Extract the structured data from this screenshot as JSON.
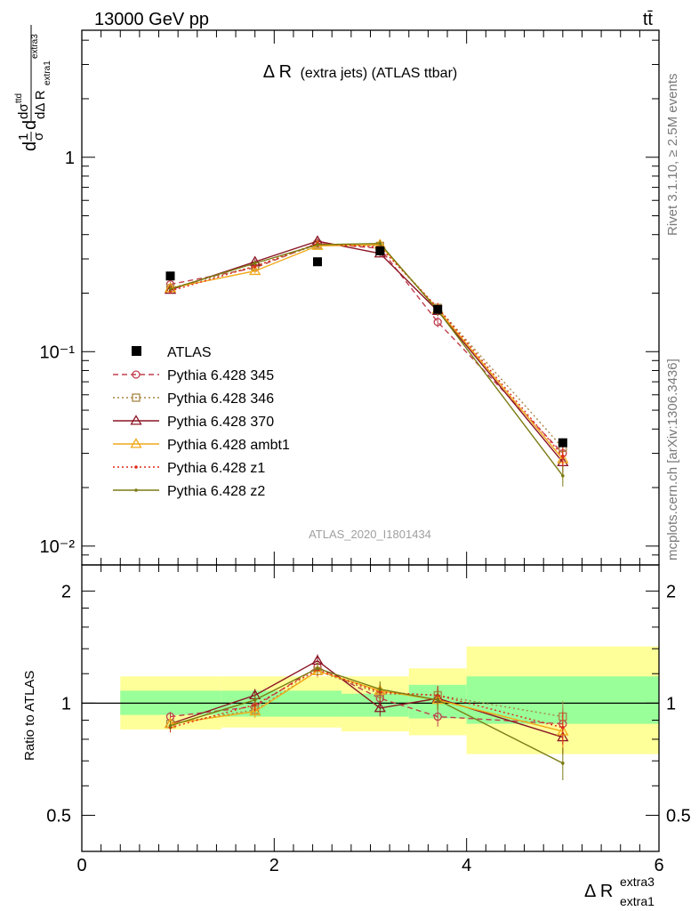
{
  "header": {
    "energy_label": "13000 GeV pp",
    "process_label": "tt̄"
  },
  "side_labels": {
    "rivet": "Rivet 3.1.10, ≥ 2.5M events",
    "source": "mcplots.cern.ch [arXiv:1306.3436]"
  },
  "chart_data": [
    {
      "type": "line",
      "panel": "main",
      "title_main": "Δ R",
      "title_sub": "(extra jets) (ATLAS ttbar)",
      "analysis_label": "ATLAS_2020_I1801434",
      "ylabel": "dσ/dΔ R normalized (1/σ)",
      "yscale": "log",
      "ylim": [
        0.008,
        4.5
      ],
      "xlim": [
        0,
        6
      ],
      "ytick_labels": [
        "10⁻²",
        "10⁻¹",
        "1"
      ],
      "grid": false,
      "legend_position": "left-middle",
      "data": {
        "name": "ATLAS",
        "x": [
          0.92,
          2.45,
          3.1,
          3.7,
          5.0
        ],
        "y": [
          0.245,
          0.29,
          0.33,
          0.165,
          0.034
        ],
        "band_bins": [
          [
            0.4,
            1.45
          ],
          [
            1.45,
            2.7
          ],
          [
            2.7,
            3.4
          ],
          [
            3.4,
            4.0
          ],
          [
            4.0,
            6.0
          ]
        ]
      },
      "series": [
        {
          "name": "Pythia 6.428 345",
          "color": "#c0404f",
          "marker": "circle",
          "dash": "6,4",
          "x": [
            0.92,
            1.8,
            2.45,
            3.1,
            3.7,
            5.0
          ],
          "y": [
            0.222,
            0.27,
            0.36,
            0.34,
            0.142,
            0.03
          ]
        },
        {
          "name": "Pythia 6.428 346",
          "color": "#a88545",
          "marker": "square",
          "dash": "2,3",
          "x": [
            0.92,
            1.8,
            2.45,
            3.1,
            3.7,
            5.0
          ],
          "y": [
            0.212,
            0.275,
            0.355,
            0.35,
            0.168,
            0.032
          ]
        },
        {
          "name": "Pythia 6.428 370",
          "color": "#8b1525",
          "marker": "triangle",
          "dash": "",
          "x": [
            0.92,
            1.8,
            2.45,
            3.1,
            3.7,
            5.0
          ],
          "y": [
            0.208,
            0.29,
            0.37,
            0.32,
            0.162,
            0.027
          ]
        },
        {
          "name": "Pythia 6.428 ambt1",
          "color": "#f0a818",
          "marker": "triangle",
          "dash": "",
          "x": [
            0.92,
            1.8,
            2.45,
            3.1,
            3.7,
            5.0
          ],
          "y": [
            0.212,
            0.26,
            0.35,
            0.355,
            0.165,
            0.028
          ]
        },
        {
          "name": "Pythia 6.428 z1",
          "color": "#e02818",
          "marker": "dot",
          "dash": "2,3",
          "x": [
            0.92,
            1.8,
            2.45,
            3.1,
            3.7,
            5.0
          ],
          "y": [
            0.205,
            0.275,
            0.36,
            0.345,
            0.168,
            0.029
          ]
        },
        {
          "name": "Pythia 6.428 z2",
          "color": "#7a7a12",
          "marker": "dot",
          "dash": "",
          "x": [
            0.92,
            1.8,
            2.45,
            3.1,
            3.7,
            5.0
          ],
          "y": [
            0.21,
            0.285,
            0.355,
            0.36,
            0.163,
            0.023
          ]
        }
      ]
    },
    {
      "type": "line",
      "panel": "ratio",
      "ylabel": "Ratio to ATLAS",
      "xlabel": "Δ R",
      "xlabel_sup": "extra3",
      "xlabel_sub": "extra1",
      "xlim": [
        0,
        6
      ],
      "ylim": [
        0.4,
        2.35
      ],
      "yscale": "log",
      "x_ticks": [
        0,
        2,
        4,
        6
      ],
      "y_ticks": [
        0.5,
        1,
        2
      ],
      "bands": [
        {
          "x": [
            0.4,
            1.45
          ],
          "stat": [
            0.93,
            1.08
          ],
          "total": [
            0.85,
            1.18
          ]
        },
        {
          "x": [
            1.45,
            2.7
          ],
          "stat": [
            0.92,
            1.08
          ],
          "total": [
            0.86,
            1.18
          ]
        },
        {
          "x": [
            2.7,
            3.4
          ],
          "stat": [
            0.92,
            1.06
          ],
          "total": [
            0.84,
            1.18
          ]
        },
        {
          "x": [
            3.4,
            4.0
          ],
          "stat": [
            0.91,
            1.12
          ],
          "total": [
            0.82,
            1.24
          ]
        },
        {
          "x": [
            4.0,
            6.0
          ],
          "stat": [
            0.88,
            1.18
          ],
          "total": [
            0.73,
            1.42
          ]
        }
      ],
      "series": [
        {
          "name": "Pythia 6.428 345",
          "color": "#c0404f",
          "marker": "circle",
          "dash": "6,4",
          "x": [
            0.92,
            1.8,
            2.45,
            3.1,
            3.7,
            5.0
          ],
          "y": [
            0.92,
            0.98,
            1.25,
            1.03,
            0.92,
            0.88
          ]
        },
        {
          "name": "Pythia 6.428 346",
          "color": "#a88545",
          "marker": "square",
          "dash": "2,3",
          "x": [
            0.92,
            1.8,
            2.45,
            3.1,
            3.7,
            5.0
          ],
          "y": [
            0.88,
            0.96,
            1.22,
            1.06,
            1.05,
            0.92
          ]
        },
        {
          "name": "Pythia 6.428 370",
          "color": "#8b1525",
          "marker": "triangle",
          "dash": "",
          "x": [
            0.92,
            1.8,
            2.45,
            3.1,
            3.7,
            5.0
          ],
          "y": [
            0.88,
            1.05,
            1.3,
            0.97,
            1.03,
            0.81
          ]
        },
        {
          "name": "Pythia 6.428 ambt1",
          "color": "#f0a818",
          "marker": "triangle",
          "dash": "",
          "x": [
            0.92,
            1.8,
            2.45,
            3.1,
            3.7,
            5.0
          ],
          "y": [
            0.88,
            0.95,
            1.22,
            1.08,
            1.02,
            0.84
          ]
        },
        {
          "name": "Pythia 6.428 z1",
          "color": "#e02818",
          "marker": "dot",
          "dash": "2,3",
          "x": [
            0.92,
            1.8,
            2.45,
            3.1,
            3.7,
            5.0
          ],
          "y": [
            0.86,
            0.99,
            1.23,
            1.07,
            1.05,
            0.86
          ]
        },
        {
          "name": "Pythia 6.428 z2",
          "color": "#7a7a12",
          "marker": "dot",
          "dash": "",
          "x": [
            0.92,
            1.8,
            2.45,
            3.1,
            3.7,
            5.0
          ],
          "y": [
            0.87,
            1.02,
            1.24,
            1.09,
            1.02,
            0.69
          ]
        }
      ]
    }
  ]
}
